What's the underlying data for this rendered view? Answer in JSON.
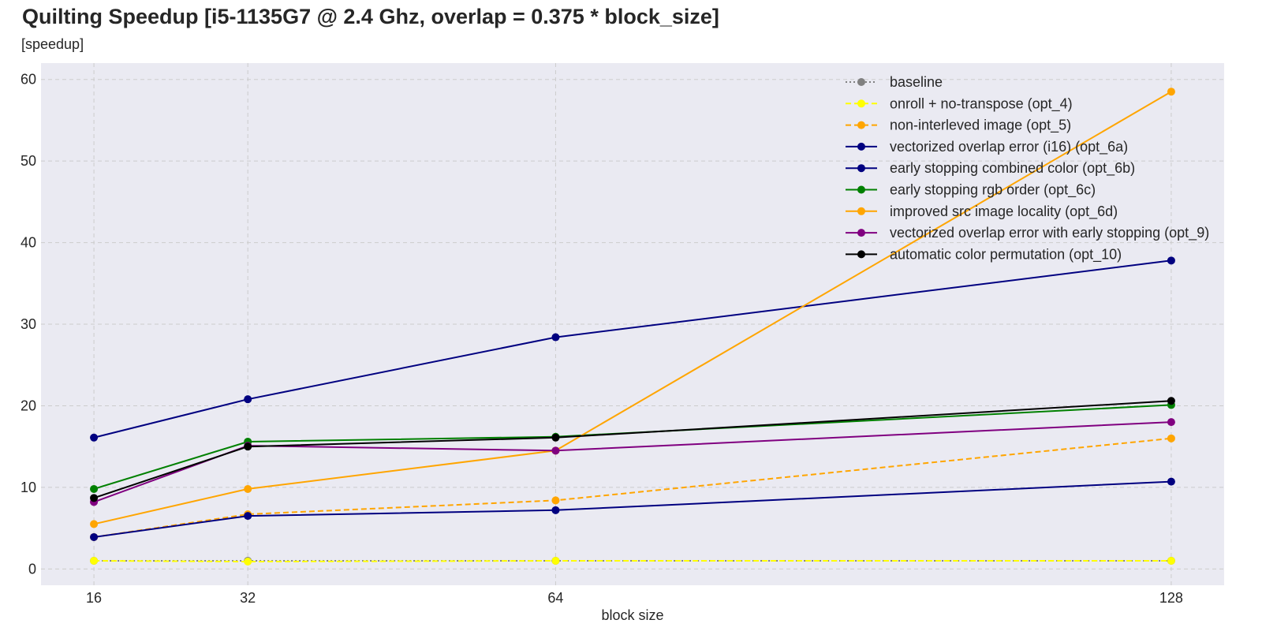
{
  "chart_data": {
    "type": "line",
    "title": "Quilting Speedup [i5-1135G7 @ 2.4 Ghz, overlap = 0.375 * block_size]",
    "subtitle": "[speedup]",
    "xlabel": "block size",
    "ylabel": "",
    "x": [
      16,
      32,
      64,
      128
    ],
    "x_ticks": [
      "16",
      "32",
      "64",
      "128"
    ],
    "xlim": [
      10.5,
      133.5
    ],
    "ylim": [
      -2,
      62
    ],
    "y_ticks": [
      0,
      10,
      20,
      30,
      40,
      50,
      60
    ],
    "grid": true,
    "legend_position": "top-right",
    "background_color": "#eaeaf2",
    "grid_color": "#cccccc",
    "series": [
      {
        "name": "baseline",
        "values": [
          1.0,
          1.0,
          1.0,
          1.0
        ],
        "color": "#808080",
        "dash": "dotted"
      },
      {
        "name": "onroll + no-transpose (opt_4)",
        "values": [
          1.0,
          0.9,
          1.0,
          1.0
        ],
        "color": "#ffff00",
        "dash": "dashed"
      },
      {
        "name": "non-interleved image (opt_5)",
        "values": [
          3.9,
          6.7,
          8.4,
          16.0
        ],
        "color": "#ffa500",
        "dash": "dashed"
      },
      {
        "name": "vectorized overlap error (i16) (opt_6a)",
        "values": [
          3.9,
          6.5,
          7.2,
          10.7
        ],
        "color": "#000080",
        "dash": "solid"
      },
      {
        "name": "early stopping combined color (opt_6b)",
        "values": [
          16.1,
          20.8,
          28.4,
          37.8
        ],
        "color": "#000080",
        "dash": "solid"
      },
      {
        "name": "early stopping rgb order (opt_6c)",
        "values": [
          9.8,
          15.6,
          16.2,
          20.1
        ],
        "color": "#008000",
        "dash": "solid"
      },
      {
        "name": "improved src image locality (opt_6d)",
        "values": [
          5.5,
          9.8,
          14.5,
          58.5
        ],
        "color": "#ffa500",
        "dash": "solid"
      },
      {
        "name": "vectorized overlap error with early stopping (opt_9)",
        "values": [
          8.2,
          15.1,
          14.5,
          18.0
        ],
        "color": "#800080",
        "dash": "solid"
      },
      {
        "name": "automatic color permutation (opt_10)",
        "values": [
          8.7,
          15.0,
          16.1,
          20.6
        ],
        "color": "#000000",
        "dash": "solid"
      }
    ]
  }
}
